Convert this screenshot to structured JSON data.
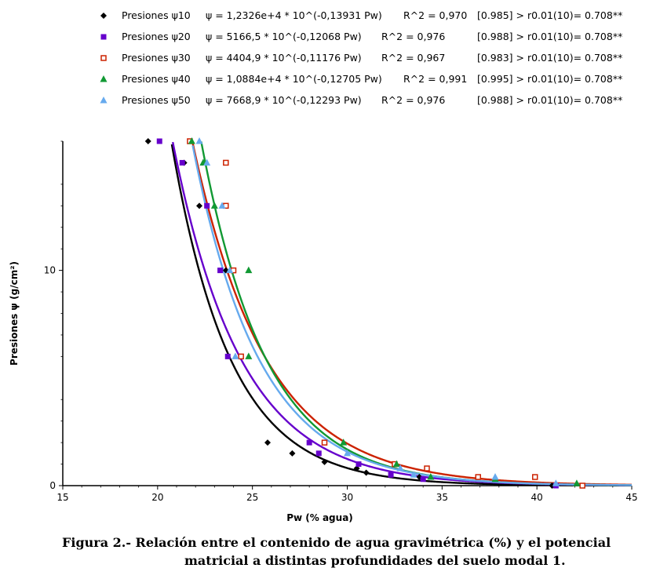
{
  "chart_data": {
    "type": "scatter",
    "xlabel": "Pw (% agua)",
    "ylabel": "Presiones ψ (g/cm²)",
    "xlim": [
      15,
      45
    ],
    "ylim": [
      0,
      16
    ],
    "xticks": [
      15,
      20,
      25,
      30,
      35,
      40,
      45
    ],
    "yticks": [
      0,
      10
    ],
    "grid": false,
    "legend_position": "top",
    "series": [
      {
        "name": "Presiones ψ10",
        "equation": "ψ = 1,2326e+4 * 10^(-0,13931 Pw)",
        "r2": "R^2 = 0,970",
        "signif": "[0.985] > r0.01(10)= 0.708**",
        "color": "#000000",
        "marker": "diamond",
        "a": 12326,
        "b": 0.13931,
        "x": [
          19.5,
          21.4,
          22.2,
          23.6,
          25.8,
          27.1,
          28.8,
          30.5,
          31.0,
          33.8,
          40.8
        ],
        "y": [
          16.0,
          15.0,
          13.0,
          10.0,
          2.0,
          1.5,
          1.1,
          0.8,
          0.6,
          0.4,
          0.0
        ]
      },
      {
        "name": "Presiones ψ20",
        "equation": "ψ = 5166,5 * 10^(-0,12068 Pw)",
        "r2": "R^2 = 0,976",
        "signif": "[0.988] > r0.01(10)= 0.708**",
        "color": "#6600CC",
        "marker": "square",
        "a": 5166.5,
        "b": 0.12068,
        "x": [
          20.1,
          21.3,
          22.6,
          23.3,
          23.7,
          28.0,
          28.5,
          30.6,
          32.3,
          34.0,
          41.0
        ],
        "y": [
          16.0,
          15.0,
          13.0,
          10.0,
          6.0,
          2.0,
          1.5,
          1.0,
          0.5,
          0.3,
          0.0
        ]
      },
      {
        "name": "Presiones ψ30",
        "equation": "ψ = 4404,9 * 10^(-0,11176 Pw)",
        "r2": "R^2 = 0,967",
        "signif": "[0.983] > r0.01(10)= 0.708**",
        "color": "#CC2200",
        "marker": "square-open",
        "a": 4404.9,
        "b": 0.11176,
        "x": [
          21.7,
          23.6,
          23.6,
          24.0,
          24.4,
          28.8,
          32.5,
          34.2,
          36.9,
          39.9,
          42.4
        ],
        "y": [
          16.0,
          15.0,
          13.0,
          10.0,
          6.0,
          2.0,
          1.0,
          0.8,
          0.4,
          0.4,
          0.0
        ]
      },
      {
        "name": "Presiones ψ40",
        "equation": "ψ = 1,0884e+4 * 10^(-0,12705 Pw)",
        "r2": "R^2 = 0,991",
        "signif": "[0.995] > r0.01(10)= 0.708**",
        "color": "#119933",
        "marker": "triangle",
        "a": 10884,
        "b": 0.12705,
        "x": [
          21.8,
          22.4,
          23.0,
          24.8,
          24.8,
          29.8,
          32.6,
          34.4,
          37.8,
          42.1
        ],
        "y": [
          16.0,
          15.0,
          13.0,
          10.0,
          6.0,
          2.0,
          1.0,
          0.4,
          0.3,
          0.1
        ]
      },
      {
        "name": "Presiones ψ50",
        "equation": "ψ = 7668,9 * 10^(-0,12293 Pw)",
        "r2": "R^2 = 0,976",
        "signif": "[0.988] > r0.01(10)= 0.708**",
        "color": "#66AAEE",
        "marker": "triangle",
        "a": 7668.9,
        "b": 0.12293,
        "x": [
          22.2,
          22.6,
          23.4,
          23.8,
          24.1,
          30.0,
          32.8,
          33.5,
          37.8,
          41.0
        ],
        "y": [
          16.0,
          15.0,
          13.0,
          10.0,
          6.0,
          1.5,
          0.8,
          0.5,
          0.4,
          0.1
        ]
      }
    ]
  },
  "caption": {
    "line1": "Figura  2.- Relación entre el contenido de agua gravimétrica (%) y el potencial",
    "line2": "matricial  a distintas profundidades del suelo modal 1."
  }
}
